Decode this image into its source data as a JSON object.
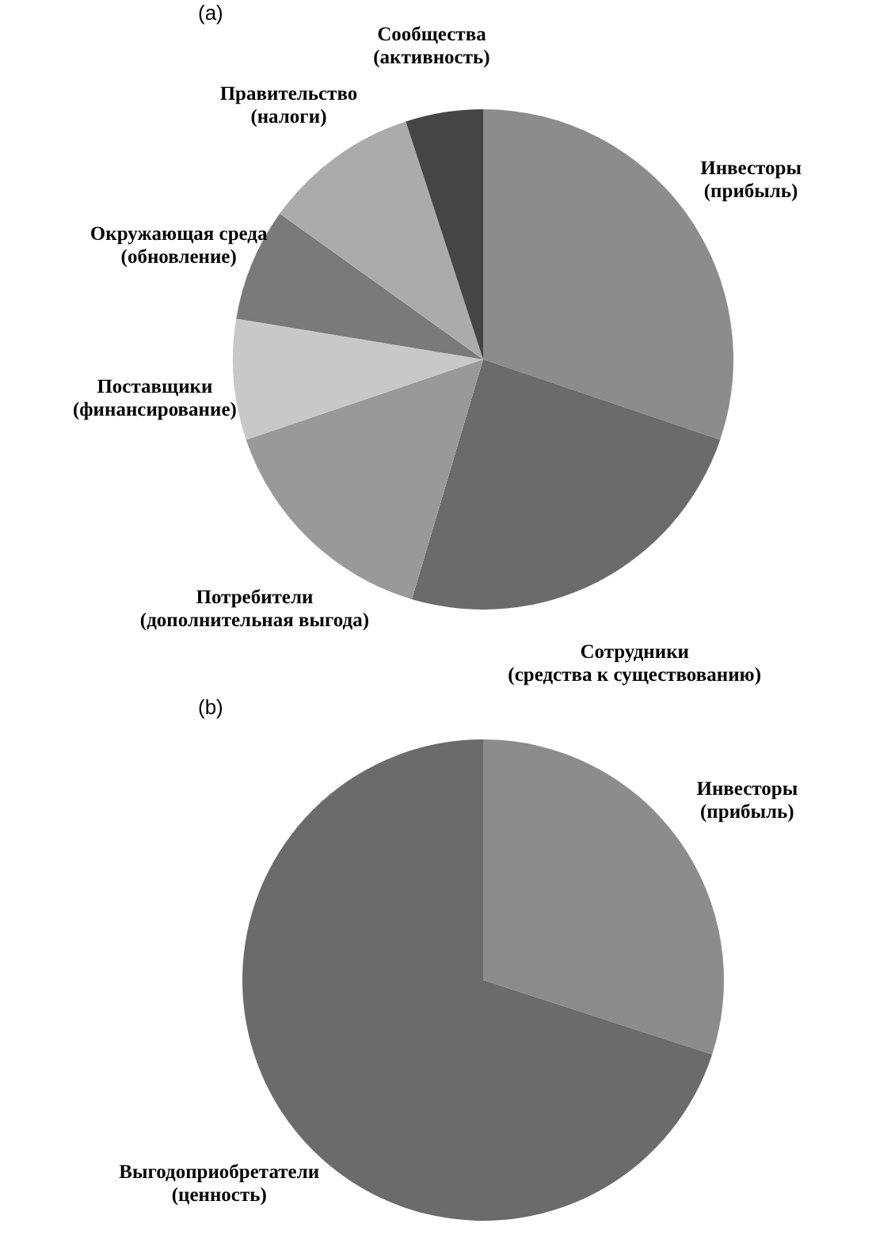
{
  "chart_data": [
    {
      "type": "pie",
      "title": "(a)",
      "categories": [
        "Инвесторы\n(прибыль)",
        "Сотрудники\n(средства к существованию)",
        "Потребители\n(дополнительная выгода)",
        "Поставщики\n(финансирование)",
        "Окружающая среда\n(обновление)",
        "Правительство\n(налоги)",
        "Сообщества\n(активность)"
      ],
      "values": [
        30.2,
        24.4,
        15.2,
        7.8,
        7.3,
        10.1,
        5.0
      ],
      "colors": [
        "#8c8c8c",
        "#6b6b6b",
        "#999999",
        "#c8c8c8",
        "#7a7a7a",
        "#ababab",
        "#454545"
      ],
      "legend": false
    },
    {
      "type": "pie",
      "title": "(b)",
      "categories": [
        "Инвесторы\n(прибыль)",
        "Выгодоприобретатели\n(ценность)"
      ],
      "values": [
        30,
        70
      ],
      "colors": [
        "#9a9a9a",
        "#6b6b6b"
      ],
      "legend": false
    }
  ]
}
